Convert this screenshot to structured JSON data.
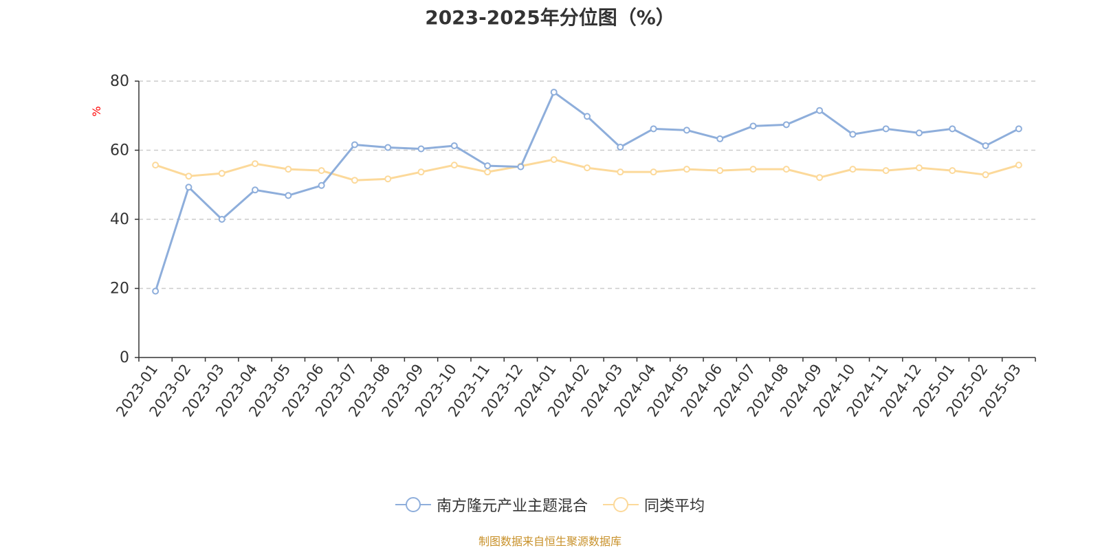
{
  "chart_data": {
    "type": "line",
    "title": "2023-2025年分位图（%）",
    "ylabel": "%",
    "xlabel": "",
    "ylim": [
      0,
      80
    ],
    "yticks": [
      0,
      20,
      40,
      60,
      80
    ],
    "grid": true,
    "legend_position": "bottom",
    "categories": [
      "2023-01",
      "2023-02",
      "2023-03",
      "2023-04",
      "2023-05",
      "2023-06",
      "2023-07",
      "2023-08",
      "2023-09",
      "2023-10",
      "2023-11",
      "2023-12",
      "2024-01",
      "2024-02",
      "2024-03",
      "2024-04",
      "2024-05",
      "2024-06",
      "2024-07",
      "2024-08",
      "2024-09",
      "2024-10",
      "2024-11",
      "2024-12",
      "2025-01",
      "2025-02",
      "2025-03"
    ],
    "series": [
      {
        "name": "南方隆元产业主题混合",
        "color": "#8eaedb",
        "values": [
          19.2,
          49.3,
          40.0,
          48.5,
          46.9,
          49.8,
          61.6,
          60.8,
          60.4,
          61.3,
          55.5,
          55.2,
          76.8,
          69.8,
          60.9,
          66.2,
          65.8,
          63.3,
          67.0,
          67.4,
          71.5,
          64.6,
          66.2,
          65.0,
          66.2,
          61.3,
          66.2
        ]
      },
      {
        "name": "同类平均",
        "color": "#fcd99a",
        "values": [
          55.7,
          52.5,
          53.3,
          56.1,
          54.5,
          54.1,
          51.3,
          51.7,
          53.7,
          55.7,
          53.7,
          55.4,
          57.3,
          54.9,
          53.7,
          53.7,
          54.5,
          54.1,
          54.5,
          54.5,
          52.1,
          54.5,
          54.1,
          54.9,
          54.1,
          52.9,
          55.7
        ]
      }
    ]
  },
  "source_note": "制图数据来自恒生聚源数据库",
  "colors": {
    "axis": "#333333",
    "grid": "#cccccc",
    "ylabel": "#ff0000",
    "source": "#c8912a"
  }
}
